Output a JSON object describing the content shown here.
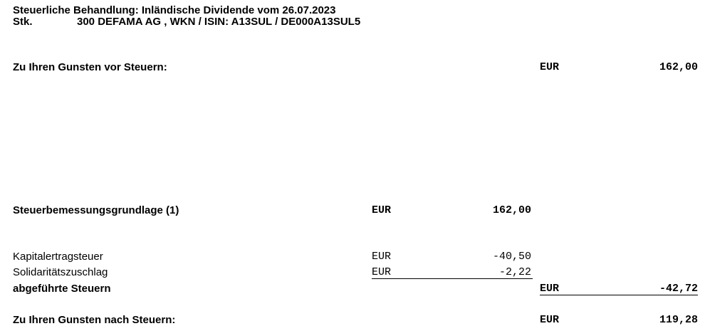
{
  "header": {
    "title": "Steuerliche Behandlung: Inländische Dividende vom 26.07.2023",
    "stk_label": "Stk.",
    "stk_value": "300 DEFAMA AG , WKN / ISIN: A13SUL  / DE000A13SUL5"
  },
  "rows": {
    "vor_steuern": {
      "label": "Zu Ihren Gunsten vor Steuern:",
      "currency": "EUR",
      "amount": "162,00"
    },
    "bemessungsgrundlage": {
      "label": "Steuerbemessungsgrundlage (1)",
      "currency": "EUR",
      "amount": "162,00"
    },
    "kapitalertragsteuer": {
      "label": "Kapitalertragsteuer",
      "currency": "EUR",
      "amount": "-40,50"
    },
    "soli": {
      "label": "Solidaritätszuschlag",
      "currency": "EUR",
      "amount": "-2,22"
    },
    "abgefuehrte_steuern": {
      "label": "abgeführte Steuern",
      "currency": "EUR",
      "amount": "-42,72"
    },
    "nach_steuern": {
      "label": "Zu Ihren Gunsten nach Steuern:",
      "currency": "EUR",
      "amount": "119,28"
    }
  }
}
